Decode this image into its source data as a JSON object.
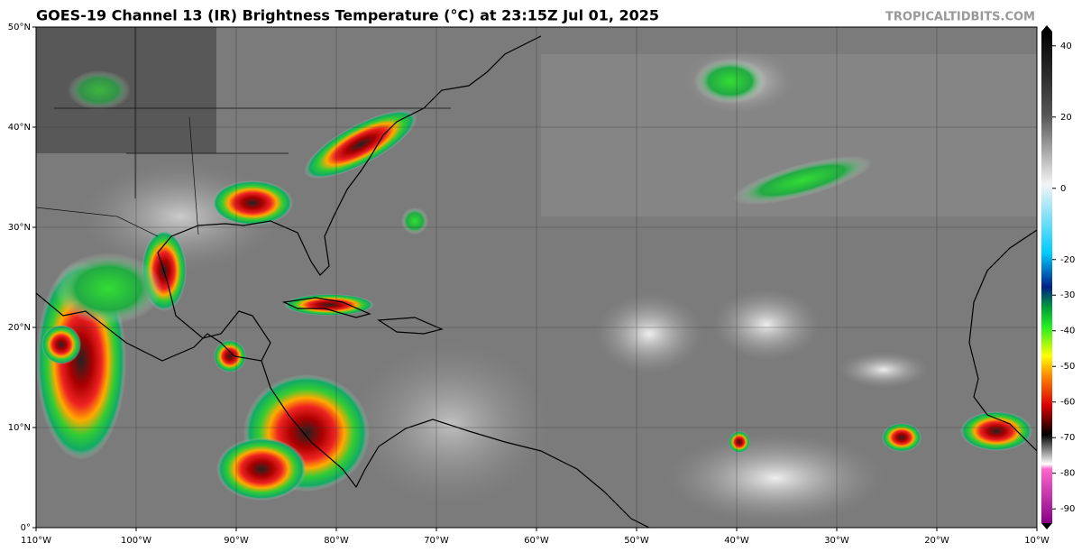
{
  "header": {
    "title": "GOES-19 Channel 13 (IR) Brightness Temperature (°C) at 23:15Z Jul 01, 2025",
    "credit": "TROPICALTIDBITS.COM"
  },
  "map": {
    "lat_labels": [
      {
        "value": 50,
        "label": "50°N"
      },
      {
        "value": 40,
        "label": "40°N"
      },
      {
        "value": 30,
        "label": "30°N"
      },
      {
        "value": 20,
        "label": "20°N"
      },
      {
        "value": 10,
        "label": "10°N"
      },
      {
        "value": 0,
        "label": "0°"
      }
    ],
    "lon_labels": [
      {
        "value": -110,
        "label": "110°W"
      },
      {
        "value": -100,
        "label": "100°W"
      },
      {
        "value": -90,
        "label": "90°W"
      },
      {
        "value": -80,
        "label": "80°W"
      },
      {
        "value": -70,
        "label": "70°W"
      },
      {
        "value": -60,
        "label": "60°W"
      },
      {
        "value": -50,
        "label": "50°W"
      },
      {
        "value": -40,
        "label": "40°W"
      },
      {
        "value": -30,
        "label": "30°W"
      },
      {
        "value": -20,
        "label": "20°W"
      },
      {
        "value": -10,
        "label": "10°W"
      }
    ]
  },
  "colorbar": {
    "lim": [
      -94,
      44
    ],
    "ticks": [
      40,
      20,
      0,
      -20,
      -30,
      -40,
      -50,
      -60,
      -70,
      -80,
      -90
    ]
  }
}
